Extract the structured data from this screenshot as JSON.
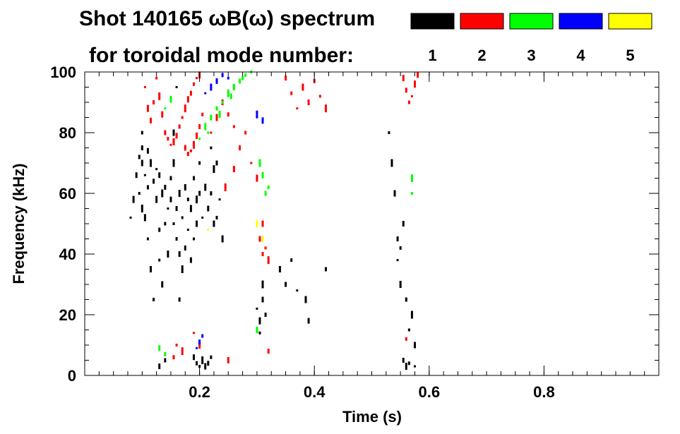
{
  "chart_data": {
    "type": "scatter",
    "title": "Shot 140165 ωB(ω) spectrum",
    "subtitle": "for toroidal mode number:",
    "xlabel": "Time (s)",
    "ylabel": "Frequency (kHz)",
    "xlim": [
      0,
      1
    ],
    "ylim": [
      0,
      100
    ],
    "x_ticks": [
      0.2,
      0.4,
      0.6,
      0.8
    ],
    "x_tick_labels": [
      "0.2",
      "0.4",
      "0.6",
      "0.8"
    ],
    "y_ticks": [
      0,
      20,
      40,
      60,
      80,
      100
    ],
    "y_tick_labels": [
      "0",
      "20",
      "40",
      "60",
      "80",
      "100"
    ],
    "grid": false,
    "legend_position": "top-right",
    "legend": [
      {
        "label": "1",
        "color": "#000000"
      },
      {
        "label": "2",
        "color": "#ff0000"
      },
      {
        "label": "3",
        "color": "#00ff00"
      },
      {
        "label": "4",
        "color": "#0000ff"
      },
      {
        "label": "5",
        "color": "#ffff00"
      }
    ],
    "series": [
      {
        "name": "1",
        "color": "#000000",
        "points": [
          [
            0.08,
            52
          ],
          [
            0.085,
            58
          ],
          [
            0.09,
            66
          ],
          [
            0.095,
            72
          ],
          [
            0.095,
            60
          ],
          [
            0.1,
            55
          ],
          [
            0.1,
            70
          ],
          [
            0.1,
            75
          ],
          [
            0.1,
            80
          ],
          [
            0.105,
            66
          ],
          [
            0.105,
            52
          ],
          [
            0.11,
            74
          ],
          [
            0.11,
            62
          ],
          [
            0.11,
            45
          ],
          [
            0.115,
            70
          ],
          [
            0.115,
            35
          ],
          [
            0.12,
            64
          ],
          [
            0.12,
            25
          ],
          [
            0.125,
            68
          ],
          [
            0.125,
            58
          ],
          [
            0.13,
            66
          ],
          [
            0.13,
            48
          ],
          [
            0.13,
            38
          ],
          [
            0.135,
            60
          ],
          [
            0.135,
            30
          ],
          [
            0.14,
            62
          ],
          [
            0.14,
            50
          ],
          [
            0.145,
            55
          ],
          [
            0.145,
            40
          ],
          [
            0.15,
            58
          ],
          [
            0.15,
            65
          ],
          [
            0.155,
            50
          ],
          [
            0.155,
            70
          ],
          [
            0.155,
            80
          ],
          [
            0.16,
            55
          ],
          [
            0.16,
            45
          ],
          [
            0.16,
            95
          ],
          [
            0.165,
            60
          ],
          [
            0.165,
            40
          ],
          [
            0.165,
            25
          ],
          [
            0.17,
            52
          ],
          [
            0.17,
            35
          ],
          [
            0.175,
            62
          ],
          [
            0.175,
            42
          ],
          [
            0.18,
            58
          ],
          [
            0.18,
            48
          ],
          [
            0.185,
            55
          ],
          [
            0.185,
            38
          ],
          [
            0.19,
            65
          ],
          [
            0.19,
            45
          ],
          [
            0.195,
            58
          ],
          [
            0.195,
            50
          ],
          [
            0.2,
            60
          ],
          [
            0.2,
            70
          ],
          [
            0.205,
            52
          ],
          [
            0.21,
            62
          ],
          [
            0.215,
            55
          ],
          [
            0.22,
            60
          ],
          [
            0.22,
            75
          ],
          [
            0.225,
            68
          ],
          [
            0.225,
            50
          ],
          [
            0.23,
            70
          ],
          [
            0.23,
            52
          ],
          [
            0.235,
            58
          ],
          [
            0.24,
            45
          ],
          [
            0.19,
            6
          ],
          [
            0.195,
            4
          ],
          [
            0.2,
            3
          ],
          [
            0.205,
            5
          ],
          [
            0.21,
            3
          ],
          [
            0.215,
            4
          ],
          [
            0.22,
            6
          ],
          [
            0.3,
            22
          ],
          [
            0.305,
            18
          ],
          [
            0.31,
            25
          ],
          [
            0.315,
            20
          ],
          [
            0.305,
            14
          ],
          [
            0.31,
            30
          ],
          [
            0.34,
            35
          ],
          [
            0.35,
            30
          ],
          [
            0.36,
            38
          ],
          [
            0.37,
            28
          ],
          [
            0.385,
            25
          ],
          [
            0.39,
            18
          ],
          [
            0.42,
            35
          ],
          [
            0.53,
            80
          ],
          [
            0.535,
            70
          ],
          [
            0.54,
            60
          ],
          [
            0.545,
            45
          ],
          [
            0.55,
            42
          ],
          [
            0.545,
            38
          ],
          [
            0.55,
            30
          ],
          [
            0.555,
            50
          ],
          [
            0.56,
            25
          ],
          [
            0.565,
            15
          ],
          [
            0.57,
            20
          ],
          [
            0.575,
            10
          ],
          [
            0.555,
            5
          ],
          [
            0.565,
            4
          ],
          [
            0.575,
            3
          ],
          [
            0.56,
            3
          ],
          [
            0.13,
            3
          ],
          [
            0.14,
            5
          ]
        ]
      },
      {
        "name": "2",
        "color": "#ff0000",
        "points": [
          [
            0.105,
            95
          ],
          [
            0.11,
            88
          ],
          [
            0.115,
            84
          ],
          [
            0.12,
            90
          ],
          [
            0.125,
            98
          ],
          [
            0.13,
            92
          ],
          [
            0.135,
            86
          ],
          [
            0.14,
            80
          ],
          [
            0.145,
            78
          ],
          [
            0.15,
            76
          ],
          [
            0.155,
            77
          ],
          [
            0.16,
            79
          ],
          [
            0.165,
            82
          ],
          [
            0.17,
            85
          ],
          [
            0.175,
            88
          ],
          [
            0.18,
            91
          ],
          [
            0.185,
            93
          ],
          [
            0.19,
            96
          ],
          [
            0.195,
            98
          ],
          [
            0.2,
            99
          ],
          [
            0.175,
            75
          ],
          [
            0.18,
            73
          ],
          [
            0.185,
            74
          ],
          [
            0.19,
            76
          ],
          [
            0.195,
            79
          ],
          [
            0.2,
            82
          ],
          [
            0.205,
            86
          ],
          [
            0.22,
            80
          ],
          [
            0.23,
            85
          ],
          [
            0.24,
            90
          ],
          [
            0.25,
            86
          ],
          [
            0.26,
            82
          ],
          [
            0.245,
            62
          ],
          [
            0.26,
            68
          ],
          [
            0.27,
            75
          ],
          [
            0.28,
            80
          ],
          [
            0.29,
            70
          ],
          [
            0.3,
            65
          ],
          [
            0.305,
            45
          ],
          [
            0.31,
            40
          ],
          [
            0.315,
            42
          ],
          [
            0.32,
            38
          ],
          [
            0.31,
            50
          ],
          [
            0.35,
            98
          ],
          [
            0.36,
            93
          ],
          [
            0.37,
            88
          ],
          [
            0.38,
            95
          ],
          [
            0.39,
            90
          ],
          [
            0.4,
            97
          ],
          [
            0.41,
            92
          ],
          [
            0.42,
            88
          ],
          [
            0.555,
            98
          ],
          [
            0.56,
            94
          ],
          [
            0.565,
            90
          ],
          [
            0.57,
            92
          ],
          [
            0.575,
            96
          ],
          [
            0.58,
            99
          ],
          [
            0.155,
            6
          ],
          [
            0.16,
            10
          ],
          [
            0.17,
            8
          ],
          [
            0.25,
            5
          ],
          [
            0.32,
            8
          ],
          [
            0.56,
            12
          ],
          [
            0.19,
            14
          ],
          [
            0.2,
            10
          ]
        ]
      },
      {
        "name": "3",
        "color": "#00ff00",
        "points": [
          [
            0.2,
            78
          ],
          [
            0.21,
            82
          ],
          [
            0.22,
            85
          ],
          [
            0.23,
            88
          ],
          [
            0.24,
            90
          ],
          [
            0.25,
            93
          ],
          [
            0.26,
            95
          ],
          [
            0.27,
            97
          ],
          [
            0.28,
            99
          ],
          [
            0.215,
            80
          ],
          [
            0.235,
            86
          ],
          [
            0.255,
            92
          ],
          [
            0.275,
            98
          ],
          [
            0.29,
            100
          ],
          [
            0.305,
            70
          ],
          [
            0.31,
            66
          ],
          [
            0.315,
            60
          ],
          [
            0.32,
            62
          ],
          [
            0.14,
            88
          ],
          [
            0.15,
            91
          ],
          [
            0.13,
            9
          ],
          [
            0.14,
            7
          ],
          [
            0.57,
            60
          ],
          [
            0.57,
            65
          ],
          [
            0.3,
            15
          ]
        ]
      },
      {
        "name": "4",
        "color": "#0000ff",
        "points": [
          [
            0.21,
            93
          ],
          [
            0.22,
            95
          ],
          [
            0.23,
            97
          ],
          [
            0.24,
            99
          ],
          [
            0.25,
            98
          ],
          [
            0.3,
            86
          ],
          [
            0.31,
            84
          ],
          [
            0.2,
            11
          ],
          [
            0.205,
            13
          ],
          [
            0.195,
            9
          ]
        ]
      },
      {
        "name": "5",
        "color": "#ffff00",
        "points": [
          [
            0.215,
            48
          ],
          [
            0.3,
            50
          ],
          [
            0.31,
            45
          ]
        ]
      }
    ]
  }
}
